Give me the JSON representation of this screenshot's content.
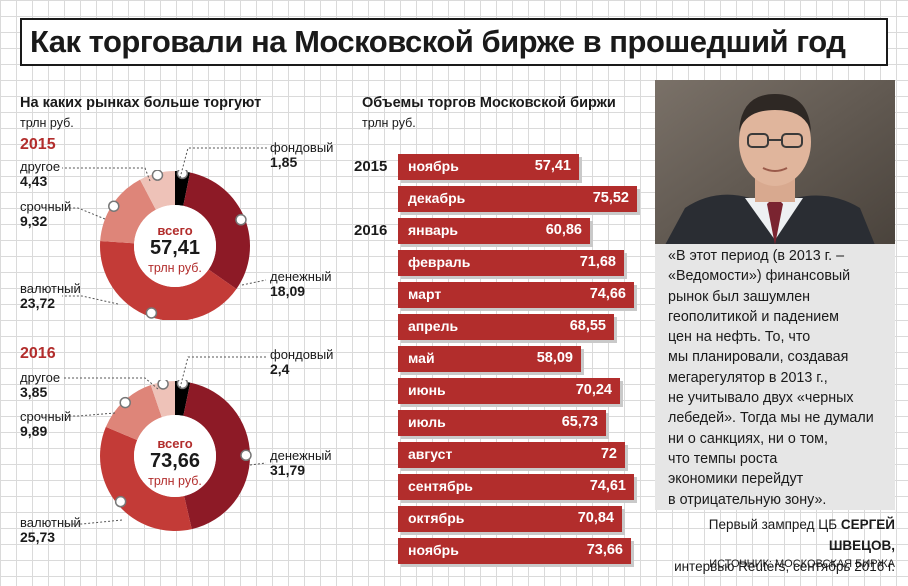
{
  "title": "Как торговали на Московской бирже в прошедший год",
  "left_section": {
    "heading": "На каких рынках больше торгуют",
    "unit": "трлн руб."
  },
  "right_section": {
    "heading": "Объемы торгов Московской биржи",
    "unit": "трлн руб."
  },
  "colors": {
    "accent": "#b22d2c",
    "denezhny": "#8d1a26",
    "valyutny": "#c33b37",
    "srochny": "#de8579",
    "drugoe": "#eec2b8",
    "fondovy": "#000000"
  },
  "chart_data": [
    {
      "type": "pie",
      "variant": "donut",
      "year": "2015",
      "center_top": "всего",
      "total": "57,41",
      "center_unit": "трлн руб.",
      "slices": [
        {
          "name": "фондовый",
          "value": 1.85,
          "label": "1,85"
        },
        {
          "name": "денежный",
          "value": 18.09,
          "label": "18,09"
        },
        {
          "name": "валютный",
          "value": 23.72,
          "label": "23,72"
        },
        {
          "name": "срочный",
          "value": 9.32,
          "label": "9,32"
        },
        {
          "name": "другое",
          "value": 4.43,
          "label": "4,43"
        }
      ]
    },
    {
      "type": "pie",
      "variant": "donut",
      "year": "2016",
      "center_top": "всего",
      "total": "73,66",
      "center_unit": "трлн руб.",
      "slices": [
        {
          "name": "фондовый",
          "value": 2.4,
          "label": "2,4"
        },
        {
          "name": "денежный",
          "value": 31.79,
          "label": "31,79"
        },
        {
          "name": "валютный",
          "value": 25.73,
          "label": "25,73"
        },
        {
          "name": "срочный",
          "value": 9.89,
          "label": "9,89"
        },
        {
          "name": "другое",
          "value": 3.85,
          "label": "3,85"
        }
      ]
    },
    {
      "type": "bar",
      "orientation": "horizontal",
      "xlim": [
        0,
        80
      ],
      "categories": [
        "ноябрь",
        "декабрь",
        "январь",
        "февраль",
        "март",
        "апрель",
        "май",
        "июнь",
        "июль",
        "август",
        "сентябрь",
        "октябрь",
        "ноябрь"
      ],
      "labels": [
        "57,41",
        "75,52",
        "60,86",
        "71,68",
        "74,66",
        "68,55",
        "58,09",
        "70,24",
        "65,73",
        "72",
        "74,61",
        "70,84",
        "73,66"
      ],
      "values": [
        57.41,
        75.52,
        60.86,
        71.68,
        74.66,
        68.55,
        58.09,
        70.24,
        65.73,
        72,
        74.61,
        70.84,
        73.66
      ],
      "year_markers": [
        {
          "index": 0,
          "label": "2015"
        },
        {
          "index": 2,
          "label": "2016"
        }
      ]
    }
  ],
  "quote": {
    "lines": [
      "«В этот период (в 2013 г. –",
      "«Ведомости») финансовый",
      "рынок был зашумлен",
      "геополитикой и падением",
      "цен на нефть. То, что",
      "мы планировали, создавая",
      "мегарегулятор в 2013 г.,",
      "не учитывало двух «черных",
      "лебедей». Тогда мы не думали",
      "ни о санкциях, ни о том,",
      "что темпы роста",
      "экономики перейдут",
      "в отрицательную зону»."
    ],
    "attribution_prefix": "Первый зампред ЦБ",
    "attribution_name": "СЕРГЕЙ ШВЕЦОВ,",
    "attribution_line2": "интервью Reuters, сентябрь 2016 г."
  },
  "source": "ИСТОЧНИК: МОСКОВСКАЯ БИРЖА"
}
